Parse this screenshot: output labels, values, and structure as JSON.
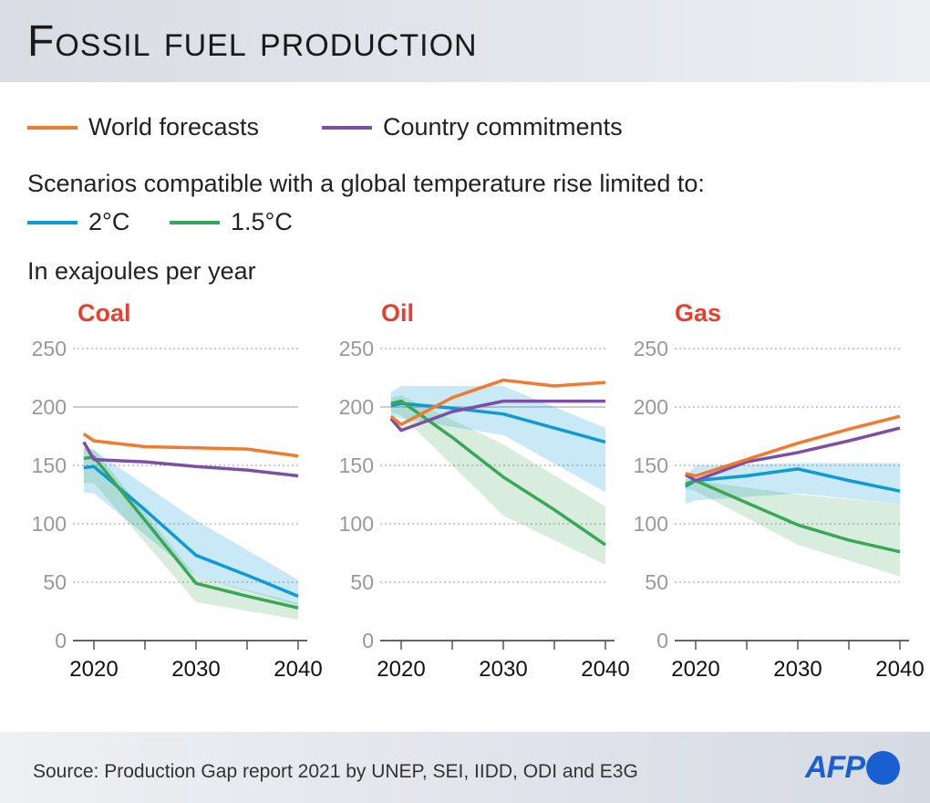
{
  "title": "Fossil fuel production",
  "legend": {
    "world": {
      "label": "World forecasts",
      "color": "#f37a2c"
    },
    "country": {
      "label": "Country commitments",
      "color": "#7d4ea6"
    },
    "scenarios_intro": "Scenarios compatible with a global temperature rise limited to:",
    "two": {
      "label": "2°C",
      "color": "#0f99d6"
    },
    "onefive": {
      "label": "1.5°C",
      "color": "#3aa757"
    }
  },
  "unit": "In exajoules per year",
  "source": "Source: Production Gap report 2021 by UNEP, SEI, IIDD, ODI and E3G",
  "logo": "AFP",
  "chart_data": [
    {
      "type": "line",
      "title": "Coal",
      "x": [
        2019,
        2020,
        2025,
        2030,
        2035,
        2040
      ],
      "ylim": [
        0,
        250
      ],
      "yticks": [
        "0",
        "50",
        "100",
        "150",
        "200",
        "250"
      ],
      "xticks": [
        "2020",
        "2030",
        "2040"
      ],
      "grid": true,
      "series": [
        {
          "name": "World forecasts",
          "values": [
            177,
            171,
            166,
            165,
            164,
            158
          ]
        },
        {
          "name": "Country commitments",
          "values": [
            170,
            155,
            153,
            149,
            146,
            141
          ]
        },
        {
          "name": "2°C",
          "values": [
            148,
            149,
            112,
            73,
            56,
            38
          ],
          "band_x": [
            2019,
            2020,
            2030,
            2040
          ],
          "band_upper": [
            165,
            163,
            103,
            52
          ],
          "band_lower": [
            127,
            126,
            55,
            30
          ]
        },
        {
          "name": "1.5°C",
          "values": [
            156,
            157,
            103,
            49,
            38,
            28
          ],
          "band_x": [
            2019,
            2020,
            2030,
            2040
          ],
          "band_upper": [
            165,
            164,
            55,
            32
          ],
          "band_lower": [
            135,
            135,
            33,
            18
          ]
        }
      ]
    },
    {
      "type": "line",
      "title": "Oil",
      "x": [
        2019,
        2020,
        2025,
        2030,
        2035,
        2040
      ],
      "ylim": [
        0,
        250
      ],
      "yticks": [
        "0",
        "50",
        "100",
        "150",
        "200",
        "250"
      ],
      "xticks": [
        "2020",
        "2030",
        "2040"
      ],
      "grid": true,
      "series": [
        {
          "name": "World forecasts",
          "values": [
            192,
            185,
            208,
            223,
            218,
            221
          ]
        },
        {
          "name": "Country commitments",
          "values": [
            190,
            180,
            196,
            205,
            205,
            205
          ]
        },
        {
          "name": "2°C",
          "values": [
            201,
            203,
            199,
            194,
            182,
            170
          ],
          "band_x": [
            2019,
            2020,
            2030,
            2040
          ],
          "band_upper": [
            213,
            218,
            218,
            182
          ],
          "band_lower": [
            192,
            190,
            176,
            127
          ]
        },
        {
          "name": "1.5°C",
          "values": [
            203,
            205,
            174,
            140,
            112,
            82
          ],
          "band_x": [
            2019,
            2020,
            2030,
            2040
          ],
          "band_upper": [
            208,
            210,
            168,
            115
          ],
          "band_lower": [
            195,
            193,
            107,
            65
          ]
        }
      ]
    },
    {
      "type": "line",
      "title": "Gas",
      "x": [
        2019,
        2020,
        2025,
        2030,
        2035,
        2040
      ],
      "ylim": [
        0,
        250
      ],
      "yticks": [
        "0",
        "50",
        "100",
        "150",
        "200",
        "250"
      ],
      "xticks": [
        "2020",
        "2030",
        "2040"
      ],
      "grid": true,
      "series": [
        {
          "name": "World forecasts",
          "values": [
            143,
            141,
            155,
            169,
            181,
            192
          ]
        },
        {
          "name": "Country commitments",
          "values": [
            142,
            137,
            153,
            161,
            171,
            182
          ]
        },
        {
          "name": "2°C",
          "values": [
            132,
            137,
            141,
            147,
            137,
            128
          ],
          "band_x": [
            2019,
            2020,
            2030,
            2040
          ],
          "band_upper": [
            140,
            150,
            152,
            152
          ],
          "band_lower": [
            117,
            120,
            126,
            117
          ]
        },
        {
          "name": "1.5°C",
          "values": [
            134,
            137,
            118,
            99,
            86,
            76
          ],
          "band_x": [
            2019,
            2020,
            2030,
            2040
          ],
          "band_upper": [
            138,
            137,
            125,
            117
          ],
          "band_lower": [
            130,
            128,
            82,
            55
          ]
        }
      ]
    }
  ]
}
